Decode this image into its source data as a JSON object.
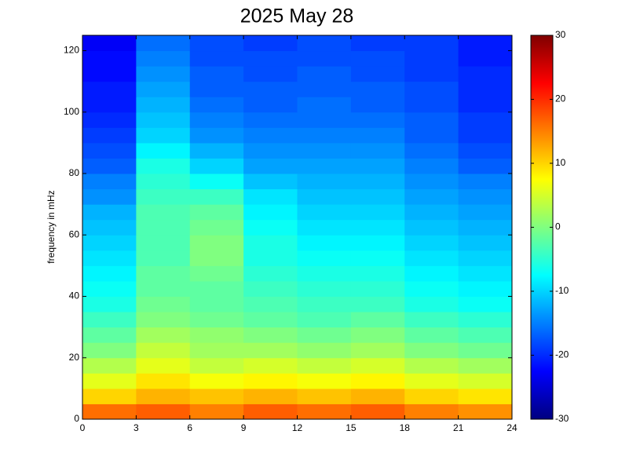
{
  "chart_data": {
    "type": "heatmap",
    "title": "2025 May 28",
    "y_label": "frequency in mHz",
    "colormap": "jet",
    "xbins": [
      0,
      3,
      6,
      9,
      12,
      15,
      18,
      21,
      24
    ],
    "ybins": [
      0,
      5,
      10,
      15,
      20,
      25,
      30,
      35,
      40,
      45,
      50,
      55,
      60,
      65,
      70,
      75,
      80,
      85,
      90,
      95,
      100,
      105,
      110,
      115,
      120,
      125
    ],
    "values": [
      [
        16,
        17,
        15,
        17,
        16,
        17,
        15,
        14
      ],
      [
        10,
        12,
        11,
        12,
        11,
        12,
        10,
        9
      ],
      [
        6,
        9,
        7,
        8,
        7,
        8,
        6,
        5
      ],
      [
        3,
        6,
        4,
        5,
        4,
        5,
        3,
        2
      ],
      [
        0,
        4,
        2,
        2,
        1,
        2,
        0,
        -1
      ],
      [
        -2,
        2,
        1,
        0,
        -1,
        0,
        -2,
        -3
      ],
      [
        -4,
        0,
        -1,
        -2,
        -3,
        -2,
        -4,
        -5
      ],
      [
        -6,
        -1,
        -2,
        -3,
        -4,
        -4,
        -6,
        -7
      ],
      [
        -7,
        -2,
        -2,
        -4,
        -5,
        -5,
        -7,
        -8
      ],
      [
        -8,
        -2,
        -1,
        -5,
        -6,
        -6,
        -8,
        -9
      ],
      [
        -9,
        -3,
        0,
        -6,
        -7,
        -7,
        -9,
        -10
      ],
      [
        -10,
        -3,
        0,
        -6,
        -8,
        -8,
        -10,
        -11
      ],
      [
        -11,
        -3,
        -1,
        -7,
        -9,
        -9,
        -11,
        -12
      ],
      [
        -12,
        -3,
        -2,
        -8,
        -10,
        -10,
        -12,
        -13
      ],
      [
        -14,
        -4,
        -4,
        -9,
        -11,
        -11,
        -13,
        -14
      ],
      [
        -15,
        -5,
        -7,
        -11,
        -12,
        -12,
        -14,
        -15
      ],
      [
        -17,
        -6,
        -10,
        -13,
        -13,
        -13,
        -15,
        -17
      ],
      [
        -18,
        -8,
        -12,
        -14,
        -14,
        -14,
        -16,
        -18
      ],
      [
        -19,
        -10,
        -14,
        -15,
        -15,
        -15,
        -17,
        -19
      ],
      [
        -20,
        -11,
        -15,
        -16,
        -16,
        -16,
        -17,
        -19
      ],
      [
        -21,
        -12,
        -16,
        -17,
        -16,
        -17,
        -18,
        -20
      ],
      [
        -21,
        -13,
        -17,
        -17,
        -17,
        -17,
        -18,
        -20
      ],
      [
        -22,
        -14,
        -17,
        -18,
        -17,
        -18,
        -19,
        -20
      ],
      [
        -22,
        -15,
        -18,
        -18,
        -18,
        -18,
        -19,
        -21
      ],
      [
        -23,
        -16,
        -18,
        -19,
        -18,
        -19,
        -19,
        -21
      ]
    ],
    "xlim": [
      0,
      24
    ],
    "xticks": [
      0,
      3,
      6,
      9,
      12,
      15,
      18,
      21,
      24
    ],
    "ylim": [
      0,
      125
    ],
    "yticks": [
      0,
      20,
      40,
      60,
      80,
      100,
      120
    ],
    "clim": [
      -30,
      30
    ],
    "cticks": [
      -30,
      -20,
      -10,
      0,
      10,
      20,
      30
    ]
  }
}
